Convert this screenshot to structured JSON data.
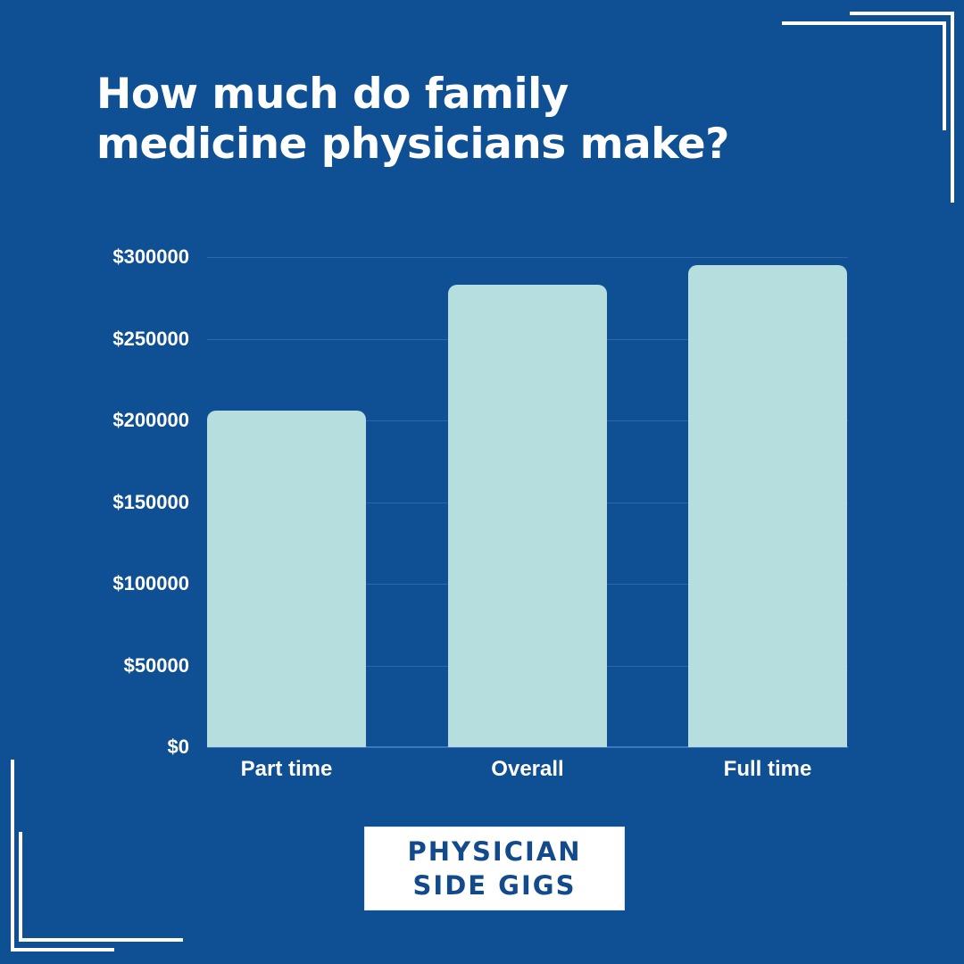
{
  "title": {
    "line1": "How much do family",
    "line2": "medicine physicians make?"
  },
  "colors": {
    "background": "#0f4f93",
    "bar": "#b7dede",
    "text": "#ffffff",
    "logo_text": "#134a8b"
  },
  "logo": {
    "line1": "PHYSICIAN",
    "line2": "SIDE GIGS"
  },
  "y_ticks": [
    "$300000",
    "$250000",
    "$200000",
    "$150000",
    "$100000",
    "$50000",
    "$0"
  ],
  "x_labels": [
    "Part time",
    "Overall",
    "Full time"
  ],
  "chart_data": {
    "type": "bar",
    "title": "How much do family medicine physicians make?",
    "categories": [
      "Part time",
      "Overall",
      "Full time"
    ],
    "values": [
      206000,
      283000,
      295000
    ],
    "xlabel": "",
    "ylabel": "",
    "ylim": [
      0,
      300000
    ],
    "y_ticks": [
      0,
      50000,
      100000,
      150000,
      200000,
      250000,
      300000
    ],
    "y_tick_labels": [
      "$0",
      "$50000",
      "$100000",
      "$150000",
      "$200000",
      "$250000",
      "$300000"
    ],
    "grid": true,
    "legend": "none"
  }
}
